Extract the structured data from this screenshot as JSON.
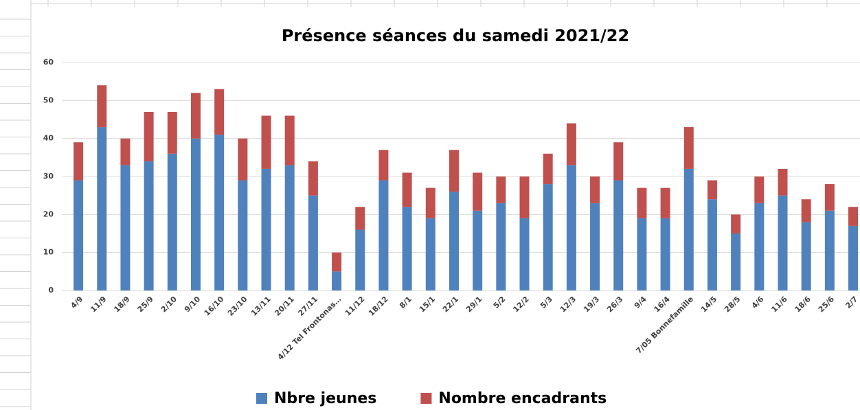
{
  "chart_data": {
    "type": "stacked_bar",
    "title": "Présence séances du samedi 2021/22",
    "categories": [
      "4/9",
      "11/9",
      "18/9",
      "25/9",
      "2/10",
      "9/10",
      "16/10",
      "23/10",
      "13/11",
      "20/11",
      "27/11",
      "4/12 Tel Frontonas…",
      "11/12",
      "18/12",
      "8/1",
      "15/1",
      "22/1",
      "29/1",
      "5/2",
      "12/2",
      "5/3",
      "12/3",
      "19/3",
      "26/3",
      "9/4",
      "16/4",
      "7/05  Bonnefamille",
      "14/5",
      "28/5",
      "4/6",
      "11/6",
      "18/6",
      "25/6",
      "2/7"
    ],
    "series": [
      {
        "name": "Nbre jeunes",
        "color": "#4f81bd",
        "values": [
          29,
          43,
          33,
          34,
          36,
          40,
          41,
          29,
          32,
          33,
          25,
          5,
          16,
          29,
          22,
          19,
          26,
          21,
          23,
          19,
          28,
          33,
          23,
          29,
          19,
          19,
          32,
          24,
          15,
          23,
          25,
          18,
          21,
          17
        ]
      },
      {
        "name": "Nombre encadrants",
        "color": "#c0504d",
        "values": [
          10,
          11,
          7,
          13,
          11,
          12,
          12,
          11,
          14,
          13,
          9,
          5,
          6,
          8,
          9,
          8,
          11,
          10,
          7,
          11,
          8,
          11,
          7,
          10,
          8,
          8,
          11,
          5,
          5,
          7,
          7,
          6,
          7,
          5
        ]
      }
    ],
    "ylim": [
      0,
      60
    ],
    "yticks": [
      0,
      10,
      20,
      30,
      40,
      50,
      60
    ],
    "grid": true,
    "legend": "bottom"
  }
}
